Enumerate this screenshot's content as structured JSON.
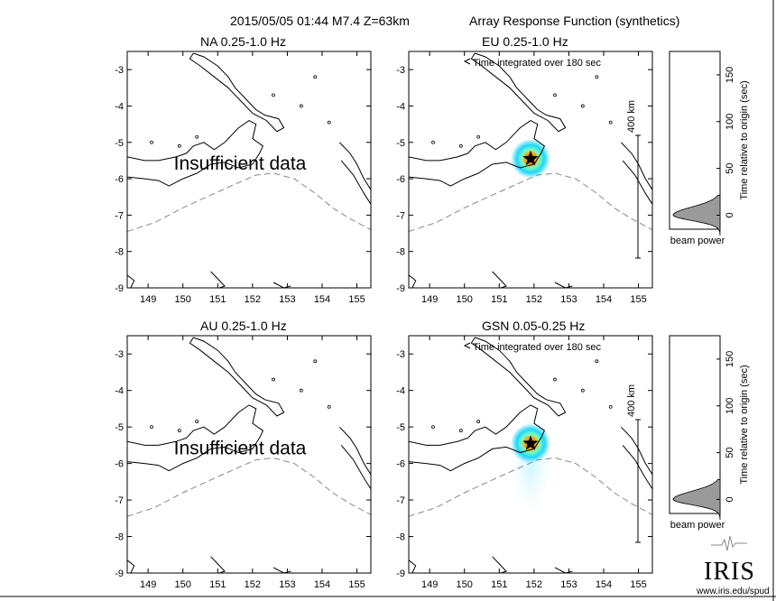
{
  "header": {
    "event": "2015/05/05 01:44  M7.4  Z=63km",
    "product": "Array Response Function (synthetics)"
  },
  "panels": [
    {
      "id": "na",
      "title": "NA  0.25-1.0 Hz",
      "message": "Insufficient data",
      "note": "",
      "scale_label": "",
      "has_beam": false
    },
    {
      "id": "eu",
      "title": "EU  0.25-1.0 Hz",
      "message": "",
      "note": "Time integrated over 180 sec",
      "scale_label": "400 km",
      "has_beam": true
    },
    {
      "id": "au",
      "title": "AU  0.25-1.0 Hz",
      "message": "Insufficient data",
      "note": "",
      "scale_label": "",
      "has_beam": false
    },
    {
      "id": "gsn",
      "title": "GSN  0.05-0.25 Hz",
      "message": "",
      "note": "Time integrated over 180 sec",
      "scale_label": "400 km",
      "has_beam": true
    }
  ],
  "map_axes": {
    "lon_ticks": [
      149,
      150,
      151,
      152,
      153,
      154,
      155
    ],
    "lon_tick_labels": [
      "149",
      "150",
      "151",
      "152",
      "153",
      "154",
      "155"
    ],
    "lon_range": [
      148.4,
      155.4
    ],
    "lat_ticks": [
      -3,
      -4,
      -5,
      -6,
      -7,
      -8,
      -9
    ],
    "lat_tick_labels": [
      "-3",
      "-4",
      "-5",
      "-6",
      "-7",
      "-8",
      "-9"
    ],
    "lat_range": [
      -9,
      -2.5
    ]
  },
  "epicenter": {
    "lon": 151.9,
    "lat": -5.45,
    "marker": "star-icon",
    "marker_color": "#000000",
    "glow_colors": [
      "#ffe600",
      "#ff9a00",
      "#7dffb8",
      "#1fd6ff"
    ]
  },
  "beam_panels": [
    {
      "id": "eu",
      "peak_time": 0,
      "yticks": [
        0,
        50,
        100,
        150
      ],
      "ytick_labels": [
        "0",
        "50",
        "100",
        "150"
      ],
      "yrange": [
        -15,
        175
      ],
      "ylabel": "Time relative to origin (sec)",
      "xlabel": "beam power",
      "fill_color": "#9a9a9a"
    },
    {
      "id": "gsn",
      "peak_time": 0,
      "yticks": [
        0,
        50,
        100,
        150
      ],
      "ytick_labels": [
        "0",
        "50",
        "100",
        "150"
      ],
      "yrange": [
        -15,
        175
      ],
      "ylabel": "Time relative to origin (sec)",
      "xlabel": "beam power",
      "fill_color": "#9a9a9a"
    }
  ],
  "footer": {
    "logo_text": "IRIS",
    "url": "www.iris.edu/spud"
  }
}
